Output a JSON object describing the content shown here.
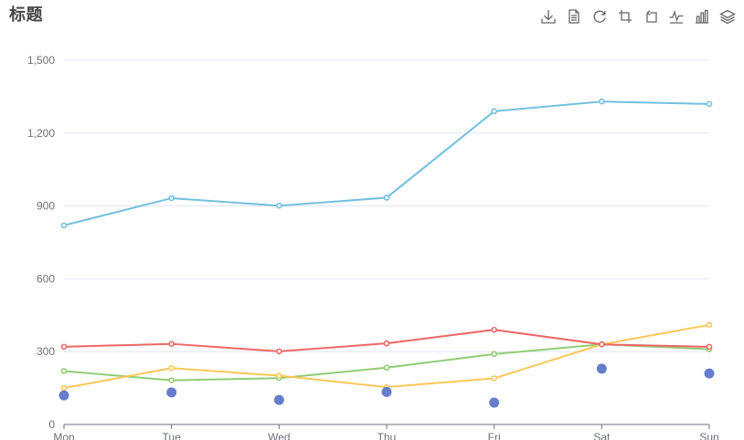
{
  "title": "标题",
  "toolbox": {
    "tools": [
      {
        "name": "save-image",
        "icon": "download-icon"
      },
      {
        "name": "data-view",
        "icon": "document-icon"
      },
      {
        "name": "restore",
        "icon": "refresh-icon"
      },
      {
        "name": "data-zoom",
        "icon": "zoom-select-icon"
      },
      {
        "name": "data-zoom-back",
        "icon": "zoom-back-icon"
      },
      {
        "name": "line-type",
        "icon": "line-chart-icon"
      },
      {
        "name": "bar-type",
        "icon": "bar-chart-icon"
      },
      {
        "name": "stack-type",
        "icon": "layers-icon"
      }
    ]
  },
  "chart_data": {
    "type": "line",
    "categories": [
      "Mon",
      "Tue",
      "Wed",
      "Thu",
      "Fri",
      "Sat",
      "Sun"
    ],
    "ylim": [
      0,
      1500
    ],
    "yticks": [
      0,
      300,
      600,
      900,
      1200,
      1500
    ],
    "ytick_labels": [
      "0",
      "300",
      "600",
      "900",
      "1,200",
      "1,500"
    ],
    "grid": true,
    "legend": "none",
    "series": [
      {
        "type": "line",
        "color": "#91cc75",
        "values": [
          220,
          182,
          191,
          234,
          290,
          330,
          310
        ]
      },
      {
        "type": "line",
        "color": "#fac858",
        "values": [
          150,
          232,
          201,
          154,
          190,
          330,
          410
        ]
      },
      {
        "type": "line",
        "color": "#ee6666",
        "values": [
          320,
          332,
          301,
          334,
          390,
          330,
          320
        ]
      },
      {
        "type": "line",
        "color": "#73c0de",
        "values": [
          820,
          932,
          901,
          934,
          1290,
          1330,
          1320
        ]
      },
      {
        "type": "scatter",
        "color": "#5470c6",
        "values": [
          120,
          132,
          101,
          134,
          90,
          230,
          210
        ]
      }
    ]
  }
}
